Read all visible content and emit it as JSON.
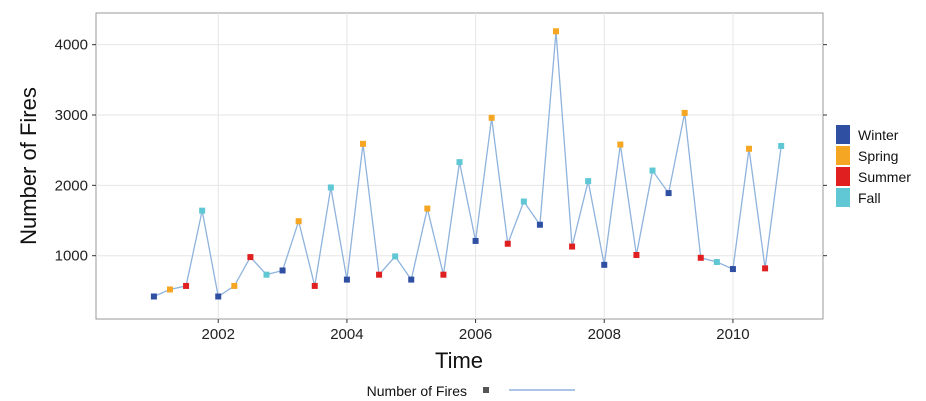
{
  "chart_data": {
    "type": "line",
    "xlabel": "Time",
    "ylabel": "Number of Fires",
    "xlim": [
      2000.1,
      2011.4
    ],
    "ylim": [
      100,
      4450
    ],
    "x_ticks": [
      2002,
      2004,
      2006,
      2008,
      2010
    ],
    "x_tick_labels": [
      "2002",
      "2004",
      "2006",
      "2008",
      "2010"
    ],
    "y_ticks": [
      1000,
      2000,
      3000,
      4000
    ],
    "y_tick_labels": [
      "1000",
      "2000",
      "3000",
      "4000"
    ],
    "grid": true,
    "line_color": "#8fb3dc",
    "season_colors": {
      "Winter": "#2f4fa3",
      "Spring": "#f5a623",
      "Summer": "#e02020",
      "Fall": "#5fc8d4"
    },
    "legend": {
      "title": "",
      "placement": "right",
      "entries": [
        "Winter",
        "Spring",
        "Summer",
        "Fall"
      ]
    },
    "bottom_legend": {
      "label": "Number of Fires",
      "placement": "bottom"
    },
    "series": [
      {
        "points": [
          {
            "x": 2001.0,
            "y": 420,
            "season": "Winter"
          },
          {
            "x": 2001.25,
            "y": 520,
            "season": "Spring"
          },
          {
            "x": 2001.5,
            "y": 570,
            "season": "Summer"
          },
          {
            "x": 2001.75,
            "y": 1640,
            "season": "Fall"
          },
          {
            "x": 2002.0,
            "y": 420,
            "season": "Winter"
          },
          {
            "x": 2002.25,
            "y": 570,
            "season": "Spring"
          },
          {
            "x": 2002.5,
            "y": 980,
            "season": "Summer"
          },
          {
            "x": 2002.75,
            "y": 730,
            "season": "Fall"
          },
          {
            "x": 2003.0,
            "y": 790,
            "season": "Winter"
          },
          {
            "x": 2003.25,
            "y": 1490,
            "season": "Spring"
          },
          {
            "x": 2003.5,
            "y": 570,
            "season": "Summer"
          },
          {
            "x": 2003.75,
            "y": 1970,
            "season": "Fall"
          },
          {
            "x": 2004.0,
            "y": 660,
            "season": "Winter"
          },
          {
            "x": 2004.25,
            "y": 2590,
            "season": "Spring"
          },
          {
            "x": 2004.5,
            "y": 730,
            "season": "Summer"
          },
          {
            "x": 2004.75,
            "y": 990,
            "season": "Fall"
          },
          {
            "x": 2005.0,
            "y": 660,
            "season": "Winter"
          },
          {
            "x": 2005.25,
            "y": 1670,
            "season": "Spring"
          },
          {
            "x": 2005.5,
            "y": 730,
            "season": "Summer"
          },
          {
            "x": 2005.75,
            "y": 2330,
            "season": "Fall"
          },
          {
            "x": 2006.0,
            "y": 1210,
            "season": "Winter"
          },
          {
            "x": 2006.25,
            "y": 2960,
            "season": "Spring"
          },
          {
            "x": 2006.5,
            "y": 1170,
            "season": "Summer"
          },
          {
            "x": 2006.75,
            "y": 1770,
            "season": "Fall"
          },
          {
            "x": 2007.0,
            "y": 1440,
            "season": "Winter"
          },
          {
            "x": 2007.25,
            "y": 4190,
            "season": "Spring"
          },
          {
            "x": 2007.5,
            "y": 1130,
            "season": "Summer"
          },
          {
            "x": 2007.75,
            "y": 2060,
            "season": "Fall"
          },
          {
            "x": 2008.0,
            "y": 870,
            "season": "Winter"
          },
          {
            "x": 2008.25,
            "y": 2580,
            "season": "Spring"
          },
          {
            "x": 2008.5,
            "y": 1010,
            "season": "Summer"
          },
          {
            "x": 2008.75,
            "y": 2210,
            "season": "Fall"
          },
          {
            "x": 2009.0,
            "y": 1890,
            "season": "Winter"
          },
          {
            "x": 2009.25,
            "y": 3030,
            "season": "Spring"
          },
          {
            "x": 2009.5,
            "y": 970,
            "season": "Summer"
          },
          {
            "x": 2009.75,
            "y": 910,
            "season": "Fall"
          },
          {
            "x": 2010.0,
            "y": 810,
            "season": "Winter"
          },
          {
            "x": 2010.25,
            "y": 2520,
            "season": "Spring"
          },
          {
            "x": 2010.5,
            "y": 820,
            "season": "Summer"
          },
          {
            "x": 2010.75,
            "y": 2560,
            "season": "Fall"
          }
        ]
      }
    ]
  }
}
